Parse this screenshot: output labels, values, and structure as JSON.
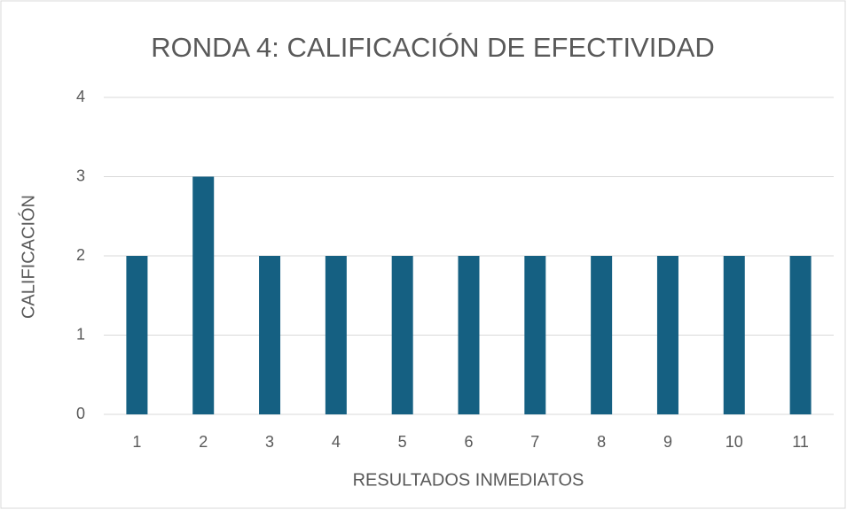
{
  "chart_data": {
    "type": "bar",
    "title": "RONDA 4: CALIFICACIÓN DE EFECTIVIDAD",
    "x_label": "RESULTADOS INMEDIATOS",
    "y_label": "CALIFICACIÓN",
    "categories": [
      "1",
      "2",
      "3",
      "4",
      "5",
      "6",
      "7",
      "8",
      "9",
      "10",
      "11"
    ],
    "values": [
      2,
      3,
      2,
      2,
      2,
      2,
      2,
      2,
      2,
      2,
      2
    ],
    "color": "#156082",
    "ylim": [
      0,
      4
    ],
    "yticks": [
      0,
      1,
      2,
      3,
      4
    ],
    "grid": true
  }
}
